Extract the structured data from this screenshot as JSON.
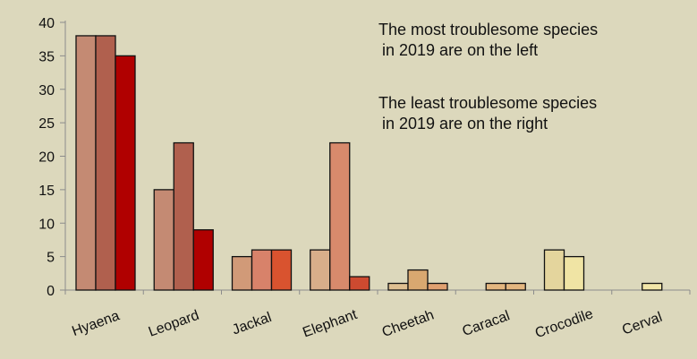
{
  "chart_data": {
    "type": "bar",
    "categories": [
      "Hyaena",
      "Leopard",
      "Jackal",
      "Elephant",
      "Cheetah",
      "Caracal",
      "Crocodile",
      "Cerval"
    ],
    "series": [
      {
        "values": [
          38,
          15,
          5,
          6,
          1,
          0,
          6,
          0
        ]
      },
      {
        "values": [
          38,
          22,
          6,
          22,
          3,
          1,
          5,
          1
        ]
      },
      {
        "values": [
          35,
          9,
          6,
          2,
          1,
          1,
          0,
          0
        ]
      }
    ],
    "bar_colors": [
      [
        "#c48a73",
        "#b0604e",
        "#b00000"
      ],
      [
        "#c48a73",
        "#b0604e",
        "#b00000"
      ],
      [
        "#d19a78",
        "#d8826a",
        "#d9532f"
      ],
      [
        "#d8ae8a",
        "#d88a6c",
        "#cd4a30"
      ],
      [
        "#dfbf91",
        "#d9a870",
        "#e0a070"
      ],
      [
        "#e3c08f",
        "#e3b67f",
        "#e3b67f"
      ],
      [
        "#e4d59d",
        "#f0e4a4",
        "#f0e4a4"
      ],
      [
        "#f0e4a4",
        "#f2e6a8",
        "#f2e6a8"
      ]
    ],
    "yticks": [
      0,
      5,
      10,
      15,
      20,
      25,
      30,
      35,
      40
    ],
    "ylim": [
      0,
      40
    ],
    "grid": false,
    "legend": "none",
    "annotations": [
      [
        "The most troublesome species",
        "in 2019 are on the left"
      ],
      [
        "The least troublesome species",
        "in 2019 are on the right"
      ]
    ]
  }
}
